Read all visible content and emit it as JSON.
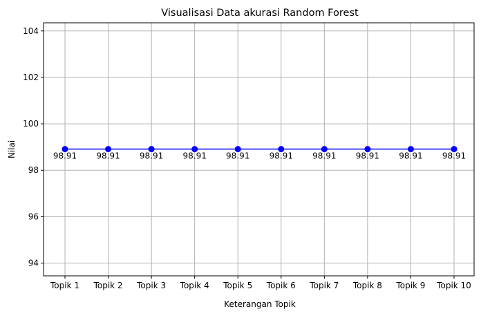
{
  "chart_data": {
    "type": "line",
    "title": "Visualisasi Data akurasi Random Forest",
    "xlabel": "Keterangan Topik",
    "ylabel": "Nilai",
    "categories": [
      "Topik 1",
      "Topik 2",
      "Topik 3",
      "Topik 4",
      "Topik 5",
      "Topik 6",
      "Topik 7",
      "Topik 8",
      "Topik 9",
      "Topik 10"
    ],
    "values": [
      98.91,
      98.91,
      98.91,
      98.91,
      98.91,
      98.91,
      98.91,
      98.91,
      98.91,
      98.91
    ],
    "data_labels": [
      "98.91",
      "98.91",
      "98.91",
      "98.91",
      "98.91",
      "98.91",
      "98.91",
      "98.91",
      "98.91",
      "98.91"
    ],
    "ylim": [
      93.45,
      104.35
    ],
    "yticks": [
      94,
      96,
      98,
      100,
      102,
      104
    ],
    "ytick_labels": [
      "94",
      "96",
      "98",
      "100",
      "102",
      "104"
    ],
    "grid": true,
    "line_color": "#0000ff",
    "marker_color": "#0000ff"
  }
}
